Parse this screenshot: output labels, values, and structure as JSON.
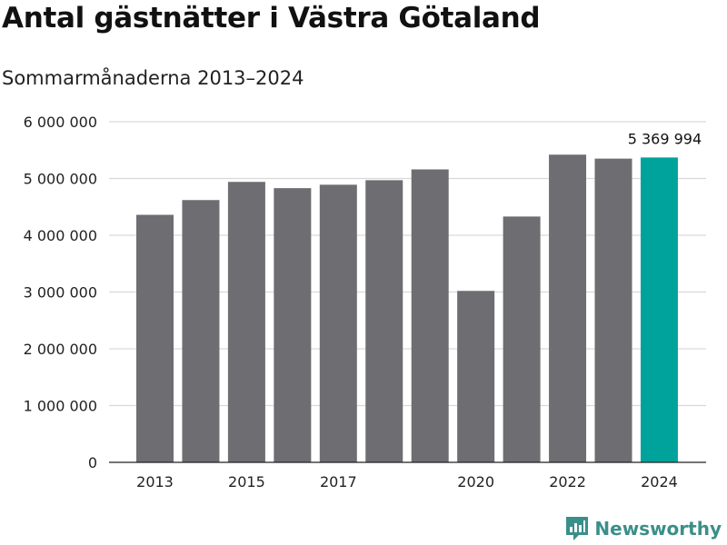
{
  "chart_data": {
    "type": "bar",
    "title": "Antal gästnätter i Västra Götaland",
    "subtitle": "Sommarmånaderna 2013–2024",
    "categories": [
      "2013",
      "2014",
      "2015",
      "2016",
      "2017",
      "2018",
      "2019",
      "2020",
      "2021",
      "2022",
      "2023",
      "2024"
    ],
    "values": [
      4360000,
      4620000,
      4940000,
      4830000,
      4890000,
      4970000,
      5160000,
      3020000,
      4330000,
      5420000,
      5350000,
      5369994
    ],
    "x_tick_labels": [
      "2013",
      "2015",
      "2017",
      "2020",
      "2022",
      "2024"
    ],
    "y_ticks": [
      "0",
      "1 000 000",
      "2 000 000",
      "3 000 000",
      "4 000 000",
      "5 000 000",
      "6 000 000"
    ],
    "ylim": [
      0,
      6000000
    ],
    "grid": true,
    "highlight": {
      "index": 11,
      "label": "5 369 994"
    },
    "colors": {
      "bar": "#6e6d72",
      "highlight": "#00a39b",
      "grid": "#d9d9d9",
      "axis": "#222222"
    }
  },
  "brand": {
    "name": "Newsworthy",
    "icon": "newsworthy-logo-icon",
    "color": "#3a8f8a"
  }
}
